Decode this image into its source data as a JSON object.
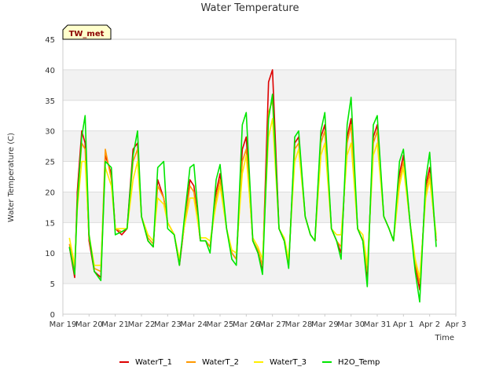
{
  "chart_data": {
    "type": "line",
    "title": "Water Temperature",
    "xlabel": "Time",
    "ylabel": "Water Temperature (C)",
    "badge": "TW_met",
    "ylim": [
      0,
      45
    ],
    "yticks": [
      0,
      5,
      10,
      15,
      20,
      25,
      30,
      35,
      40,
      45
    ],
    "xlim": [
      0,
      15
    ],
    "xticks": [
      {
        "x": 0,
        "label": "Mar 19"
      },
      {
        "x": 1,
        "label": "Mar 20"
      },
      {
        "x": 2,
        "label": "Mar 21"
      },
      {
        "x": 3,
        "label": "Mar 22"
      },
      {
        "x": 4,
        "label": "Mar 23"
      },
      {
        "x": 5,
        "label": "Mar 24"
      },
      {
        "x": 6,
        "label": "Mar 25"
      },
      {
        "x": 7,
        "label": "Mar 26"
      },
      {
        "x": 8,
        "label": "Mar 27"
      },
      {
        "x": 9,
        "label": "Mar 28"
      },
      {
        "x": 10,
        "label": "Mar 29"
      },
      {
        "x": 11,
        "label": "Mar 30"
      },
      {
        "x": 12,
        "label": "Mar 31"
      },
      {
        "x": 13,
        "label": "Apr 1"
      },
      {
        "x": 14,
        "label": "Apr 2"
      },
      {
        "x": 15,
        "label": "Apr 3"
      }
    ],
    "grid": "horizontal bands",
    "band_color": "#f2f2f2",
    "grid_color": "#dddddd",
    "legend_position": "bottom",
    "series": [
      {
        "name": "WaterT_1",
        "color": "#dd0000",
        "x": [
          0.25,
          0.45,
          0.55,
          0.72,
          0.85,
          1.0,
          1.2,
          1.45,
          1.62,
          1.85,
          2.0,
          2.25,
          2.45,
          2.68,
          2.85,
          3.0,
          3.25,
          3.45,
          3.62,
          3.85,
          4.0,
          4.25,
          4.45,
          4.62,
          4.85,
          5.0,
          5.25,
          5.45,
          5.62,
          5.85,
          6.0,
          6.25,
          6.45,
          6.62,
          6.85,
          7.0,
          7.25,
          7.45,
          7.62,
          7.85,
          8.0,
          8.25,
          8.45,
          8.62,
          8.85,
          9.0,
          9.25,
          9.45,
          9.62,
          9.85,
          10.0,
          10.25,
          10.45,
          10.62,
          10.85,
          11.0,
          11.25,
          11.45,
          11.62,
          11.85,
          12.0,
          12.25,
          12.45,
          12.62,
          12.85,
          13.0,
          13.25,
          13.45,
          13.62,
          13.85,
          14.0,
          14.25
        ],
        "y": [
          11,
          6,
          20,
          30,
          28,
          12,
          7,
          6,
          26,
          23,
          14,
          13,
          14,
          27,
          28,
          16,
          12,
          11,
          22,
          19,
          15,
          13,
          8,
          14,
          22,
          21,
          12,
          12,
          11,
          20,
          23,
          14,
          10,
          9,
          27,
          29,
          12,
          10,
          7,
          38,
          40,
          14,
          12,
          8,
          28,
          29,
          16,
          13,
          12,
          29,
          31,
          14,
          12,
          10,
          29,
          32,
          14,
          12,
          6,
          29,
          31,
          16,
          14,
          12,
          23,
          26,
          15,
          8,
          4,
          21,
          24,
          12
        ]
      },
      {
        "name": "WaterT_2",
        "color": "#ff9900",
        "x": [
          0.25,
          0.45,
          0.55,
          0.72,
          0.85,
          1.0,
          1.2,
          1.45,
          1.62,
          1.85,
          2.0,
          2.25,
          2.45,
          2.68,
          2.85,
          3.0,
          3.25,
          3.45,
          3.62,
          3.85,
          4.0,
          4.25,
          4.45,
          4.62,
          4.85,
          5.0,
          5.25,
          5.45,
          5.62,
          5.85,
          6.0,
          6.25,
          6.45,
          6.62,
          6.85,
          7.0,
          7.25,
          7.45,
          7.62,
          7.85,
          8.0,
          8.25,
          8.45,
          8.62,
          8.85,
          9.0,
          9.25,
          9.45,
          9.62,
          9.85,
          10.0,
          10.25,
          10.45,
          10.62,
          10.85,
          11.0,
          11.25,
          11.45,
          11.62,
          11.85,
          12.0,
          12.25,
          12.45,
          12.62,
          12.85,
          13.0,
          13.25,
          13.45,
          13.62,
          13.85,
          14.0,
          14.25
        ],
        "y": [
          11.5,
          7,
          19,
          28,
          27,
          12.5,
          7.5,
          7,
          27,
          22,
          14,
          13.5,
          14,
          25,
          27,
          16,
          12.5,
          11.5,
          21,
          19,
          15,
          13,
          8.5,
          14,
          21,
          20,
          12,
          12,
          11,
          19,
          22,
          14,
          10,
          9,
          25,
          27,
          12,
          10.5,
          8,
          33,
          35,
          14,
          12,
          8.5,
          27,
          28,
          16,
          13,
          12,
          28,
          30,
          14,
          12,
          11,
          28,
          31,
          14,
          12,
          7,
          28,
          30,
          16,
          14,
          12,
          22,
          25,
          15,
          8.5,
          5,
          20,
          23,
          12
        ]
      },
      {
        "name": "WaterT_3",
        "color": "#ffee00",
        "x": [
          0.25,
          0.45,
          0.55,
          0.72,
          0.85,
          1.0,
          1.2,
          1.45,
          1.62,
          1.85,
          2.0,
          2.25,
          2.45,
          2.68,
          2.85,
          3.0,
          3.25,
          3.45,
          3.62,
          3.85,
          4.0,
          4.25,
          4.45,
          4.62,
          4.85,
          5.0,
          5.25,
          5.45,
          5.62,
          5.85,
          6.0,
          6.25,
          6.45,
          6.62,
          6.85,
          7.0,
          7.25,
          7.45,
          7.62,
          7.85,
          8.0,
          8.25,
          8.45,
          8.62,
          8.85,
          9.0,
          9.25,
          9.45,
          9.62,
          9.85,
          10.0,
          10.25,
          10.45,
          10.62,
          10.85,
          11.0,
          11.25,
          11.45,
          11.62,
          11.85,
          12.0,
          12.25,
          12.45,
          12.62,
          12.85,
          13.0,
          13.25,
          13.45,
          13.62,
          13.85,
          14.0,
          14.25
        ],
        "y": [
          12.5,
          8,
          17,
          25,
          25,
          13,
          8,
          8,
          24,
          21,
          14,
          14,
          14,
          22,
          25,
          16,
          13,
          12,
          19,
          18,
          15,
          13,
          9,
          14,
          19,
          19,
          12.5,
          12.5,
          12,
          18,
          21,
          14,
          10.5,
          10,
          23,
          26,
          12.5,
          11,
          9,
          29,
          32,
          14,
          12.5,
          9,
          25,
          27,
          16,
          13,
          12,
          26,
          28,
          14,
          13,
          13,
          26,
          28,
          14,
          13,
          8,
          26,
          28,
          16,
          14,
          12,
          21,
          24,
          15,
          9,
          6,
          19,
          22,
          13
        ]
      },
      {
        "name": "H2O_Temp",
        "color": "#00e600",
        "x": [
          0.25,
          0.45,
          0.55,
          0.72,
          0.85,
          1.0,
          1.2,
          1.45,
          1.62,
          1.85,
          2.0,
          2.25,
          2.45,
          2.68,
          2.85,
          3.0,
          3.25,
          3.45,
          3.62,
          3.85,
          4.0,
          4.25,
          4.45,
          4.62,
          4.85,
          5.0,
          5.25,
          5.45,
          5.62,
          5.85,
          6.0,
          6.25,
          6.45,
          6.62,
          6.85,
          7.0,
          7.25,
          7.45,
          7.62,
          7.85,
          8.0,
          8.25,
          8.45,
          8.62,
          8.85,
          9.0,
          9.25,
          9.45,
          9.62,
          9.85,
          10.0,
          10.25,
          10.45,
          10.62,
          10.85,
          11.0,
          11.25,
          11.45,
          11.62,
          11.85,
          12.0,
          12.25,
          12.45,
          12.62,
          12.85,
          13.0,
          13.25,
          13.45,
          13.62,
          13.85,
          14.0,
          14.25
        ],
        "y": [
          11,
          6.5,
          18,
          29,
          32.5,
          13,
          7,
          5.5,
          25,
          24,
          13,
          13.5,
          14,
          26,
          30,
          16,
          12,
          11,
          24,
          25,
          14,
          13,
          8,
          15,
          24,
          24.5,
          12,
          12,
          10,
          22,
          24.5,
          14,
          9,
          8,
          31,
          33,
          12,
          10,
          6.5,
          32,
          36,
          14,
          12,
          7.5,
          29,
          30,
          16,
          13,
          12,
          30,
          33,
          14,
          12,
          9,
          31,
          35.5,
          14,
          12,
          4.5,
          31,
          32.5,
          16,
          14,
          12,
          25,
          27,
          15,
          7,
          2,
          22,
          26.5,
          11
        ]
      }
    ]
  }
}
